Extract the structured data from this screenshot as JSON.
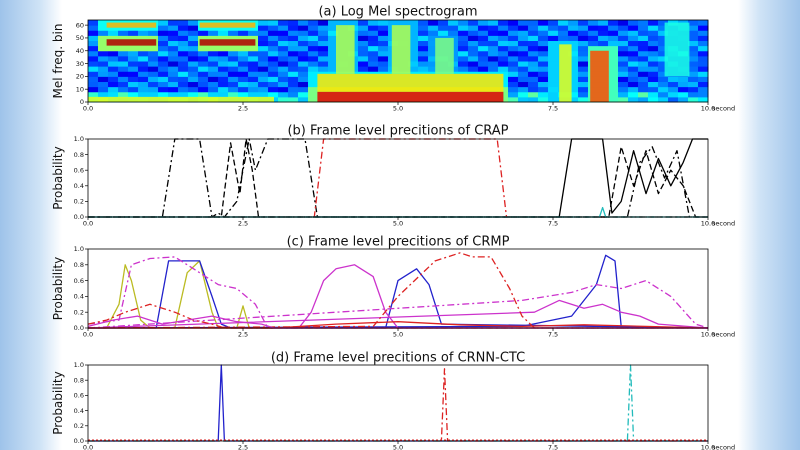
{
  "chart_data": [
    {
      "type": "heatmap",
      "title": "(a) Log Mel spectrogram",
      "ylabel": "Mel freq. bin",
      "x_unit": "second",
      "xlim": [
        0,
        10
      ],
      "ylim": [
        0,
        64
      ],
      "xticks": [
        0.0,
        2.5,
        5.0,
        7.5,
        10.0
      ],
      "xtick_labels": [
        "0.0",
        "2.5",
        "5.0",
        "7.5",
        "10.0"
      ],
      "yticks": [
        0,
        10,
        20,
        30,
        40,
        50,
        60
      ],
      "ytick_labels": [
        "0",
        "10",
        "20",
        "30",
        "40",
        "50",
        "60"
      ],
      "colormap": "jet",
      "regions": [
        {
          "t0": 0.3,
          "t1": 1.1,
          "b0": 44,
          "b1": 49,
          "level": 0.95
        },
        {
          "t0": 0.3,
          "t1": 1.1,
          "b0": 58,
          "b1": 62,
          "level": 0.7
        },
        {
          "t0": 1.8,
          "t1": 2.7,
          "b0": 44,
          "b1": 49,
          "level": 0.95
        },
        {
          "t0": 1.8,
          "t1": 2.7,
          "b0": 58,
          "b1": 62,
          "level": 0.7
        },
        {
          "t0": 0.0,
          "t1": 3.0,
          "b0": 0,
          "b1": 4,
          "level": 0.6
        },
        {
          "t0": 3.7,
          "t1": 6.7,
          "b0": 0,
          "b1": 8,
          "level": 0.9
        },
        {
          "t0": 3.7,
          "t1": 6.7,
          "b0": 8,
          "b1": 22,
          "level": 0.65
        },
        {
          "t0": 4.0,
          "t1": 4.3,
          "b0": 22,
          "b1": 60,
          "level": 0.55
        },
        {
          "t0": 4.9,
          "t1": 5.2,
          "b0": 22,
          "b1": 60,
          "level": 0.55
        },
        {
          "t0": 5.6,
          "t1": 5.9,
          "b0": 22,
          "b1": 50,
          "level": 0.5
        },
        {
          "t0": 7.6,
          "t1": 7.8,
          "b0": 0,
          "b1": 45,
          "level": 0.6
        },
        {
          "t0": 8.1,
          "t1": 8.4,
          "b0": 0,
          "b1": 40,
          "level": 0.8
        },
        {
          "t0": 9.3,
          "t1": 9.7,
          "b0": 20,
          "b1": 62,
          "level": 0.4
        }
      ]
    },
    {
      "type": "line",
      "title": "(b) Frame level precitions of CRAP",
      "ylabel": "Probability",
      "x_unit": "second",
      "xlim": [
        0,
        10
      ],
      "ylim": [
        0,
        1.0
      ],
      "xticks": [
        0.0,
        2.5,
        5.0,
        7.5,
        10.0
      ],
      "xtick_labels": [
        "0.0",
        "2.5",
        "5.0",
        "7.5",
        "10.0"
      ],
      "yticks": [
        0.0,
        0.2,
        0.4,
        0.6,
        0.8,
        1.0
      ],
      "ytick_labels": [
        "0.0",
        "0.2",
        "0.4",
        "0.6",
        "0.8",
        "1.0"
      ],
      "series": [
        {
          "color": "#000000",
          "dash": "7,3,2,3",
          "x": [
            0,
            1.2,
            1.4,
            1.8,
            2.0,
            2.1,
            2.2,
            2.4,
            2.6,
            2.7,
            2.9,
            3.5,
            3.7,
            10
          ],
          "y": [
            0,
            0,
            1.0,
            1.0,
            0,
            0.05,
            0,
            0.2,
            1.0,
            0.6,
            1.0,
            1.0,
            0,
            0
          ]
        },
        {
          "color": "#000000",
          "dash": "6,3",
          "x": [
            0,
            2.15,
            2.3,
            2.45,
            2.55,
            2.65,
            2.75,
            10
          ],
          "y": [
            0,
            0,
            0.95,
            0.3,
            1.0,
            0.6,
            0,
            0
          ]
        },
        {
          "color": "#dd2222",
          "dash": "7,3,2,3",
          "x": [
            0,
            3.65,
            3.8,
            6.6,
            6.75,
            10
          ],
          "y": [
            0,
            0,
            1.0,
            1.0,
            0,
            0
          ]
        },
        {
          "color": "#000000",
          "dash": "",
          "x": [
            0,
            7.6,
            7.8,
            8.3,
            8.45,
            8.6,
            8.8,
            9.0,
            9.2,
            9.4,
            9.6,
            9.75,
            10
          ],
          "y": [
            0,
            0,
            1.0,
            1.0,
            0.05,
            0.2,
            0.85,
            0.3,
            0.75,
            0.4,
            0.7,
            1.0,
            1.0
          ]
        },
        {
          "color": "#000000",
          "dash": "6,3",
          "x": [
            0,
            8.4,
            8.6,
            8.8,
            9.0,
            9.2,
            9.4,
            9.6,
            9.8,
            10
          ],
          "y": [
            0,
            0,
            0.9,
            0.4,
            0.85,
            0.3,
            0.6,
            0.4,
            0,
            0
          ]
        },
        {
          "color": "#000000",
          "dash": "7,3,2,3",
          "x": [
            0,
            8.7,
            8.9,
            9.1,
            9.3,
            9.5,
            9.7,
            10
          ],
          "y": [
            0,
            0,
            0.7,
            0.9,
            0.5,
            0.85,
            0,
            0
          ]
        },
        {
          "color": "#22bbbb",
          "dash": "",
          "x": [
            0,
            8.25,
            8.3,
            8.35,
            10
          ],
          "y": [
            0,
            0,
            0.12,
            0,
            0
          ]
        }
      ]
    },
    {
      "type": "line",
      "title": "(c) Frame level precitions of CRMP",
      "ylabel": "Probability",
      "x_unit": "second",
      "xlim": [
        0,
        10
      ],
      "ylim": [
        0,
        1.0
      ],
      "xticks": [
        0.0,
        2.5,
        5.0,
        7.5,
        10.0
      ],
      "xtick_labels": [
        "0.0",
        "2.5",
        "5.0",
        "7.5",
        "10.0"
      ],
      "yticks": [
        0.0,
        0.2,
        0.4,
        0.6,
        0.8,
        1.0
      ],
      "ytick_labels": [
        "0.0",
        "0.2",
        "0.4",
        "0.6",
        "0.8",
        "1.0"
      ],
      "series": [
        {
          "color": "#bbbb22",
          "dash": "",
          "x": [
            0,
            0.3,
            0.5,
            0.6,
            0.7,
            0.85,
            1.0,
            10
          ],
          "y": [
            0,
            0,
            0.3,
            0.8,
            0.6,
            0.1,
            0,
            0
          ]
        },
        {
          "color": "#bbbb22",
          "dash": "",
          "x": [
            0,
            1.4,
            1.6,
            1.8,
            2.0,
            2.1,
            10
          ],
          "y": [
            0,
            0,
            0.7,
            0.85,
            0.2,
            0,
            0
          ]
        },
        {
          "color": "#bbbb22",
          "dash": "",
          "x": [
            0,
            2.4,
            2.5,
            2.6,
            10
          ],
          "y": [
            0,
            0,
            0.28,
            0,
            0
          ]
        },
        {
          "color": "#2222cc",
          "dash": "",
          "x": [
            0,
            1.1,
            1.3,
            1.8,
            2.0,
            2.15,
            2.3,
            4.8,
            5.0,
            5.3,
            5.5,
            5.7,
            10
          ],
          "y": [
            0,
            0,
            0.85,
            0.85,
            0.4,
            0.05,
            0,
            0,
            0.6,
            0.75,
            0.55,
            0.05,
            0
          ]
        },
        {
          "color": "#2222cc",
          "dash": "",
          "x": [
            0,
            7.0,
            7.8,
            8.2,
            8.35,
            8.5,
            8.6,
            10
          ],
          "y": [
            0,
            0.02,
            0.15,
            0.55,
            0.92,
            0.85,
            0.02,
            0
          ]
        },
        {
          "color": "#cc33cc",
          "dash": "",
          "x": [
            0,
            3.4,
            3.6,
            3.8,
            4.0,
            4.3,
            4.6,
            4.8,
            5.0,
            10
          ],
          "y": [
            0,
            0,
            0.2,
            0.6,
            0.75,
            0.8,
            0.65,
            0.2,
            0,
            0
          ]
        },
        {
          "color": "#cc33cc",
          "dash": "",
          "x": [
            0,
            7.2,
            7.6,
            8.0,
            8.3,
            8.6,
            8.9,
            9.2,
            10
          ],
          "y": [
            0,
            0.2,
            0.35,
            0.25,
            0.3,
            0.2,
            0.15,
            0.05,
            0
          ]
        },
        {
          "color": "#cc33cc",
          "dash": "7,3,2,3",
          "x": [
            0,
            0.5,
            0.7,
            1.0,
            1.4,
            1.8,
            2.1,
            2.4,
            2.7,
            2.9,
            3.1,
            10
          ],
          "y": [
            0.05,
            0.1,
            0.8,
            0.88,
            0.9,
            0.7,
            0.55,
            0.5,
            0.3,
            0,
            0,
            0
          ]
        },
        {
          "color": "#cc33cc",
          "dash": "7,3,2,3",
          "x": [
            0,
            7.0,
            7.4,
            7.8,
            8.2,
            8.6,
            9.0,
            9.4,
            9.8,
            10
          ],
          "y": [
            0,
            0.35,
            0.4,
            0.45,
            0.55,
            0.5,
            0.6,
            0.4,
            0.05,
            0
          ]
        },
        {
          "color": "#dd2222",
          "dash": "7,3,2,3",
          "x": [
            0,
            4.6,
            5.0,
            5.6,
            6.0,
            6.2,
            6.5,
            6.8,
            7.0,
            7.2,
            10
          ],
          "y": [
            0,
            0.02,
            0.4,
            0.85,
            0.95,
            0.9,
            0.9,
            0.5,
            0.15,
            0,
            0
          ]
        },
        {
          "color": "#dd2222",
          "dash": "",
          "x": [
            0,
            3.0,
            4.0,
            5.0,
            6.0,
            7.0,
            8.0,
            9.0,
            10
          ],
          "y": [
            0,
            0,
            0.05,
            0.08,
            0.04,
            0.02,
            0.04,
            0.02,
            0
          ]
        },
        {
          "color": "#dd2222",
          "dash": "7,3,2,3",
          "x": [
            0,
            0.3,
            0.6,
            1.0,
            1.4,
            1.7,
            2.0,
            2.2,
            10
          ],
          "y": [
            0.05,
            0.1,
            0.2,
            0.3,
            0.2,
            0.1,
            0.05,
            0,
            0
          ]
        },
        {
          "color": "#cc33cc",
          "dash": "",
          "x": [
            0,
            0.4,
            0.8,
            1.2,
            1.6,
            2.0,
            2.4,
            2.8,
            3.0,
            10
          ],
          "y": [
            0.02,
            0.1,
            0.15,
            0.05,
            0.1,
            0.15,
            0.08,
            0.05,
            0,
            0
          ]
        }
      ]
    },
    {
      "type": "line",
      "title": "(d) Frame level precitions of CRNN-CTC",
      "ylabel": "Probability",
      "x_unit": "second",
      "xlim": [
        0,
        10
      ],
      "ylim": [
        0,
        1.0
      ],
      "xticks": [
        0.0,
        2.5,
        5.0,
        7.5,
        10.0
      ],
      "xtick_labels": [
        "0.0",
        "2.5",
        "5.0",
        "7.5",
        "10.0"
      ],
      "yticks": [
        0.0,
        0.2,
        0.4,
        0.6,
        0.8,
        1.0
      ],
      "ytick_labels": [
        "0.0",
        "0.2",
        "0.4",
        "0.6",
        "0.8",
        "1.0"
      ],
      "series": [
        {
          "color": "#2222cc",
          "dash": "",
          "x": [
            0,
            2.1,
            2.15,
            2.2,
            10
          ],
          "y": [
            0,
            0,
            1.0,
            0,
            0
          ]
        },
        {
          "color": "#dd2222",
          "dash": "7,3,2,3",
          "x": [
            0,
            5.7,
            5.75,
            5.8,
            10
          ],
          "y": [
            0,
            0,
            0.95,
            0,
            0
          ]
        },
        {
          "color": "#22bbbb",
          "dash": "7,3,2,3",
          "x": [
            0,
            8.7,
            8.75,
            8.8,
            10
          ],
          "y": [
            0,
            0,
            1.0,
            0,
            0
          ]
        },
        {
          "color": "#dd2222",
          "dash": "2,2",
          "x": [
            0,
            10
          ],
          "y": [
            0.01,
            0.01
          ]
        }
      ]
    }
  ]
}
